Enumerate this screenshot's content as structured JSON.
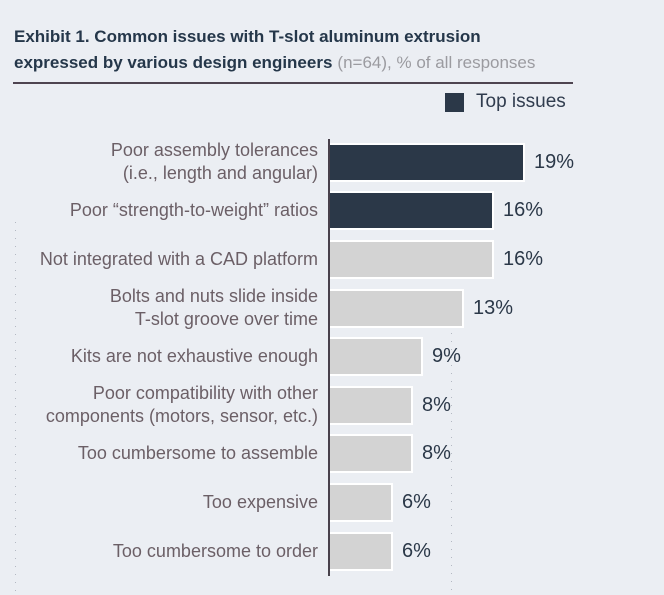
{
  "header": {
    "title_bold_line1": "Exhibit 1. Common issues with T-slot aluminum extrusion",
    "title_bold_line2": "expressed by various design engineers",
    "title_suffix": "(n=64), % of all responses"
  },
  "legend": {
    "label": "Top issues",
    "swatch_color": "#2b3848"
  },
  "chart_data": {
    "type": "bar",
    "orientation": "horizontal",
    "title": "Exhibit 1. Common issues with T-slot aluminum extrusion expressed by various design engineers (n=64), % of all responses",
    "sample_size": "n=64",
    "unit": "% of all responses",
    "legend_position": "top-right",
    "grid": "faint dotted vertical guides",
    "xlim": [
      0,
      22
    ],
    "categories": [
      "Poor assembly tolerances (i.e., length and angular)",
      "Poor “strength-to-weight” ratios",
      "Not integrated with a CAD platform",
      "Bolts and nuts slide inside T-slot groove over time",
      "Kits are not exhaustive enough",
      "Poor compatibility with other components (motors, sensor, etc.)",
      "Too cumbersome to assemble",
      "Too expensive",
      "Too cumbersome to order"
    ],
    "label_lines": [
      [
        "Poor assembly tolerances",
        "(i.e., length and angular)"
      ],
      [
        "Poor “strength-to-weight” ratios"
      ],
      [
        "Not integrated with a CAD platform"
      ],
      [
        "Bolts and nuts slide inside",
        "T-slot groove over time"
      ],
      [
        "Kits are not exhaustive enough"
      ],
      [
        "Poor compatibility with other",
        "components (motors, sensor, etc.)"
      ],
      [
        "Too cumbersome to assemble"
      ],
      [
        "Too expensive"
      ],
      [
        "Too cumbersome to order"
      ]
    ],
    "values": [
      19,
      16,
      16,
      13,
      9,
      8,
      8,
      6,
      6
    ],
    "value_labels": [
      "19%",
      "16%",
      "16%",
      "13%",
      "9%",
      "8%",
      "8%",
      "6%",
      "6%"
    ],
    "top_issue_flags": [
      true,
      true,
      false,
      false,
      false,
      false,
      false,
      false,
      false
    ],
    "colors": {
      "top": "#2b3848",
      "other": "#d3d3d3",
      "background": "#ebeef3",
      "axis": "#48414b",
      "category_text": "#6b5f66",
      "value_text": "#2b3848"
    }
  }
}
